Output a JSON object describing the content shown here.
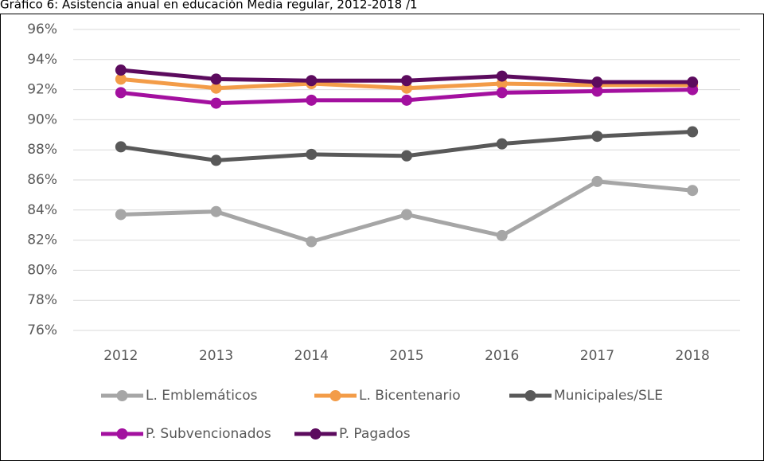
{
  "chart_data": {
    "type": "line",
    "title": "Gráfico 6: Asistencia anual en educación Media regular, 2012-2018 /1",
    "categories": [
      "2012",
      "2013",
      "2014",
      "2015",
      "2016",
      "2017",
      "2018"
    ],
    "series": [
      {
        "name": "L. Emblemáticos",
        "color": "#a6a6a6",
        "values": [
          83.7,
          83.9,
          81.9,
          83.7,
          82.3,
          85.9,
          85.3
        ]
      },
      {
        "name": "L. Bicentenario",
        "color": "#f39c48",
        "values": [
          92.7,
          92.1,
          92.4,
          92.1,
          92.4,
          92.3,
          92.3
        ]
      },
      {
        "name": "Municipales/SLE",
        "color": "#595959",
        "values": [
          88.2,
          87.3,
          87.7,
          87.6,
          88.4,
          88.9,
          89.2
        ]
      },
      {
        "name": "P. Subvencionados",
        "color": "#a3109f",
        "values": [
          91.8,
          91.1,
          91.3,
          91.3,
          91.8,
          91.9,
          92.0
        ]
      },
      {
        "name": "P. Pagados",
        "color": "#5c0b5e",
        "values": [
          93.3,
          92.7,
          92.6,
          92.6,
          92.9,
          92.5,
          92.5
        ]
      }
    ],
    "ylim": [
      76,
      96
    ],
    "yticks": [
      {
        "value": 76,
        "label": "76%"
      },
      {
        "value": 78,
        "label": "78%"
      },
      {
        "value": 80,
        "label": "80%"
      },
      {
        "value": 82,
        "label": "82%"
      },
      {
        "value": 84,
        "label": "84%"
      },
      {
        "value": 86,
        "label": "86%"
      },
      {
        "value": 88,
        "label": "88%"
      },
      {
        "value": 90,
        "label": "90%"
      },
      {
        "value": 92,
        "label": "92%"
      },
      {
        "value": 94,
        "label": "94%"
      },
      {
        "value": 96,
        "label": "96%"
      }
    ],
    "grid": true,
    "legend": "bottom"
  }
}
